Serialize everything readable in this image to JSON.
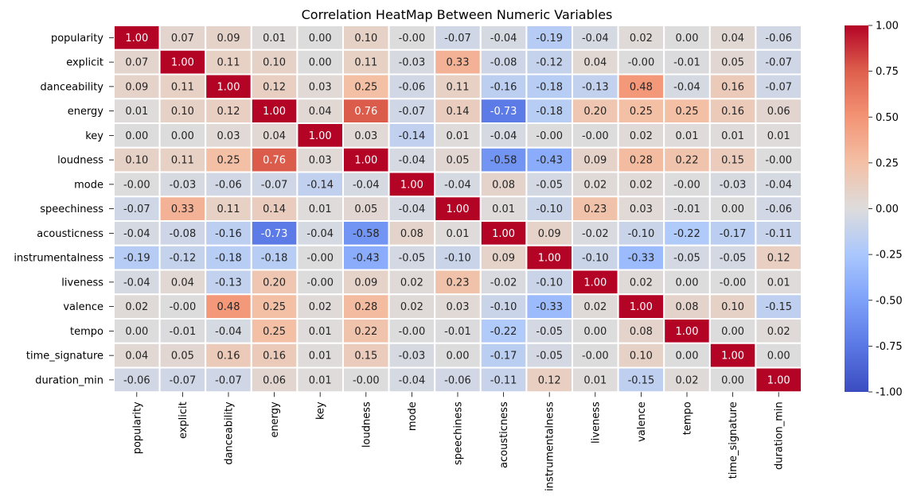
{
  "chart_data": {
    "type": "heatmap",
    "title": "Correlation HeatMap Between Numeric Variables",
    "xlabel": "",
    "ylabel": "",
    "variables": [
      "popularity",
      "explicit",
      "danceability",
      "energy",
      "key",
      "loudness",
      "mode",
      "speechiness",
      "acousticness",
      "instrumentalness",
      "liveness",
      "valence",
      "tempo",
      "time_signature",
      "duration_min"
    ],
    "values": [
      [
        1.0,
        0.07,
        0.09,
        0.01,
        0.0,
        0.1,
        -0.0,
        -0.07,
        -0.04,
        -0.19,
        -0.04,
        0.02,
        0.0,
        0.04,
        -0.06
      ],
      [
        0.07,
        1.0,
        0.11,
        0.1,
        0.0,
        0.11,
        -0.03,
        0.33,
        -0.08,
        -0.12,
        0.04,
        -0.0,
        -0.01,
        0.05,
        -0.07
      ],
      [
        0.09,
        0.11,
        1.0,
        0.12,
        0.03,
        0.25,
        -0.06,
        0.11,
        -0.16,
        -0.18,
        -0.13,
        0.48,
        -0.04,
        0.16,
        -0.07
      ],
      [
        0.01,
        0.1,
        0.12,
        1.0,
        0.04,
        0.76,
        -0.07,
        0.14,
        -0.73,
        -0.18,
        0.2,
        0.25,
        0.25,
        0.16,
        0.06
      ],
      [
        0.0,
        0.0,
        0.03,
        0.04,
        1.0,
        0.03,
        -0.14,
        0.01,
        -0.04,
        -0.0,
        -0.0,
        0.02,
        0.01,
        0.01,
        0.01
      ],
      [
        0.1,
        0.11,
        0.25,
        0.76,
        0.03,
        1.0,
        -0.04,
        0.05,
        -0.58,
        -0.43,
        0.09,
        0.28,
        0.22,
        0.15,
        -0.0
      ],
      [
        -0.0,
        -0.03,
        -0.06,
        -0.07,
        -0.14,
        -0.04,
        1.0,
        -0.04,
        0.08,
        -0.05,
        0.02,
        0.02,
        -0.0,
        -0.03,
        -0.04
      ],
      [
        -0.07,
        0.33,
        0.11,
        0.14,
        0.01,
        0.05,
        -0.04,
        1.0,
        0.01,
        -0.1,
        0.23,
        0.03,
        -0.01,
        0.0,
        -0.06
      ],
      [
        -0.04,
        -0.08,
        -0.16,
        -0.73,
        -0.04,
        -0.58,
        0.08,
        0.01,
        1.0,
        0.09,
        -0.02,
        -0.1,
        -0.22,
        -0.17,
        -0.11
      ],
      [
        -0.19,
        -0.12,
        -0.18,
        -0.18,
        -0.0,
        -0.43,
        -0.05,
        -0.1,
        0.09,
        1.0,
        -0.1,
        -0.33,
        -0.05,
        -0.05,
        0.12
      ],
      [
        -0.04,
        0.04,
        -0.13,
        0.2,
        -0.0,
        0.09,
        0.02,
        0.23,
        -0.02,
        -0.1,
        1.0,
        0.02,
        0.0,
        -0.0,
        0.01
      ],
      [
        0.02,
        -0.0,
        0.48,
        0.25,
        0.02,
        0.28,
        0.02,
        0.03,
        -0.1,
        -0.33,
        0.02,
        1.0,
        0.08,
        0.1,
        -0.15
      ],
      [
        0.0,
        -0.01,
        -0.04,
        0.25,
        0.01,
        0.22,
        -0.0,
        -0.01,
        -0.22,
        -0.05,
        0.0,
        0.08,
        1.0,
        0.0,
        0.02
      ],
      [
        0.04,
        0.05,
        0.16,
        0.16,
        0.01,
        0.15,
        -0.03,
        0.0,
        -0.17,
        -0.05,
        -0.0,
        0.1,
        0.0,
        1.0,
        0.0
      ],
      [
        -0.06,
        -0.07,
        -0.07,
        0.06,
        0.01,
        -0.0,
        -0.04,
        -0.06,
        -0.11,
        0.12,
        0.01,
        -0.15,
        0.02,
        0.0,
        1.0
      ]
    ],
    "colormap": "coolwarm",
    "vmin": -1.0,
    "vmax": 1.0,
    "colorbar_ticks": [
      "1.00",
      "0.75",
      "0.50",
      "0.25",
      "0.00",
      "-0.25",
      "-0.50",
      "-0.75",
      "-1.00"
    ],
    "colorbar_values": [
      1.0,
      0.75,
      0.5,
      0.25,
      0.0,
      -0.25,
      -0.5,
      -0.75,
      -1.0
    ],
    "annotations": true,
    "grid_lines": "white",
    "legend": "colorbar-right"
  }
}
